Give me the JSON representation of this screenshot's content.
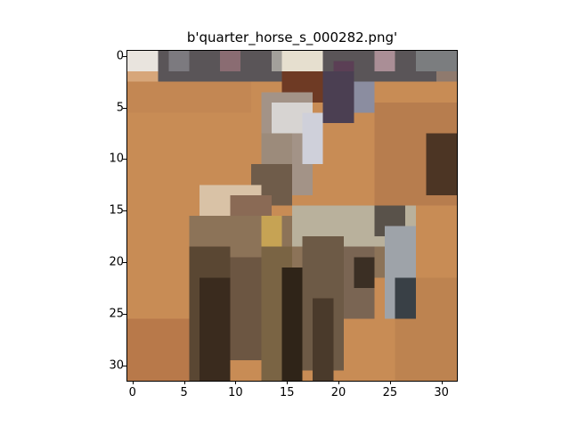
{
  "figure": {
    "title": "b'quarter_horse_s_000282.png'",
    "image_subject": "pixelated photo of a rider on a horse over a dirt arena (32x32)",
    "image_resolution": [
      32,
      32
    ]
  },
  "axes": {
    "x_ticks": [
      "0",
      "5",
      "10",
      "15",
      "20",
      "25",
      "30"
    ],
    "y_ticks": [
      "0",
      "5",
      "10",
      "15",
      "20",
      "25",
      "30"
    ],
    "x_range": [
      -0.5,
      31.5
    ],
    "y_range": [
      31.5,
      -0.5
    ]
  },
  "colors": {
    "arena": "#c88c55",
    "arena_dark": "#b8794a",
    "crowd": "#5a5558",
    "horse": "#4a3a2b",
    "horse_light": "#b9b19c",
    "rider_shirt": "#d7d4d2"
  }
}
